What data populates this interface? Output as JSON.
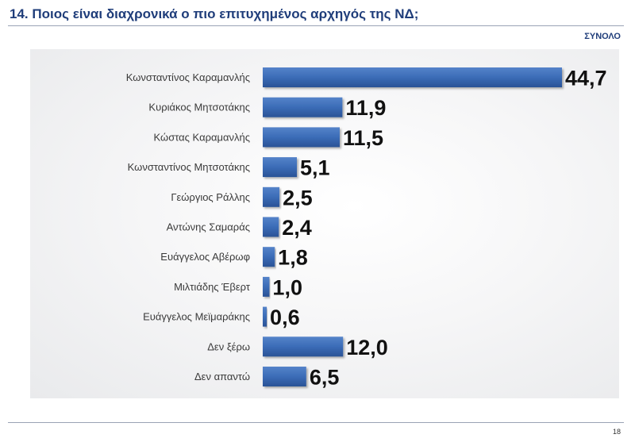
{
  "title": "14. Ποιος είναι διαχρονικά ο πιο επιτυχημένος αρχηγός της ΝΔ;",
  "subtitle": "ΣΥΝΟΛΟ",
  "page_number": "18",
  "colors": {
    "bar": "#3b6cb7",
    "bar_dark": "#2a5296",
    "title": "#1f3d7a"
  },
  "chart_data": {
    "type": "bar",
    "orientation": "horizontal",
    "categories": [
      "Κωνσταντίνος Καραμανλής",
      "Κυριάκος Μητσοτάκης",
      "Κώστας Καραμανλής",
      "Κωνσταντίνος Μητσοτάκης",
      "Γεώργιος Ράλλης",
      "Αντώνης Σαμαράς",
      "Ευάγγελος Αβέρωφ",
      "Μιλτιάδης Έβερτ",
      "Ευάγγελος Μεϊμαράκης",
      "Δεν ξέρω",
      "Δεν απαντώ"
    ],
    "values": [
      44.7,
      11.9,
      11.5,
      5.1,
      2.5,
      2.4,
      1.8,
      1.0,
      0.6,
      12.0,
      6.5
    ],
    "value_labels": [
      "44,7",
      "11,9",
      "11,5",
      "5,1",
      "2,5",
      "2,4",
      "1,8",
      "1,0",
      "0,6",
      "12,0",
      "6,5"
    ],
    "title": "14. Ποιος είναι διαχρονικά ο πιο επιτυχημένος αρχηγός της ΝΔ;",
    "subtitle": "ΣΥΝΟΛΟ",
    "xlim": [
      0,
      44.7
    ],
    "grid": false,
    "legend": "none"
  }
}
